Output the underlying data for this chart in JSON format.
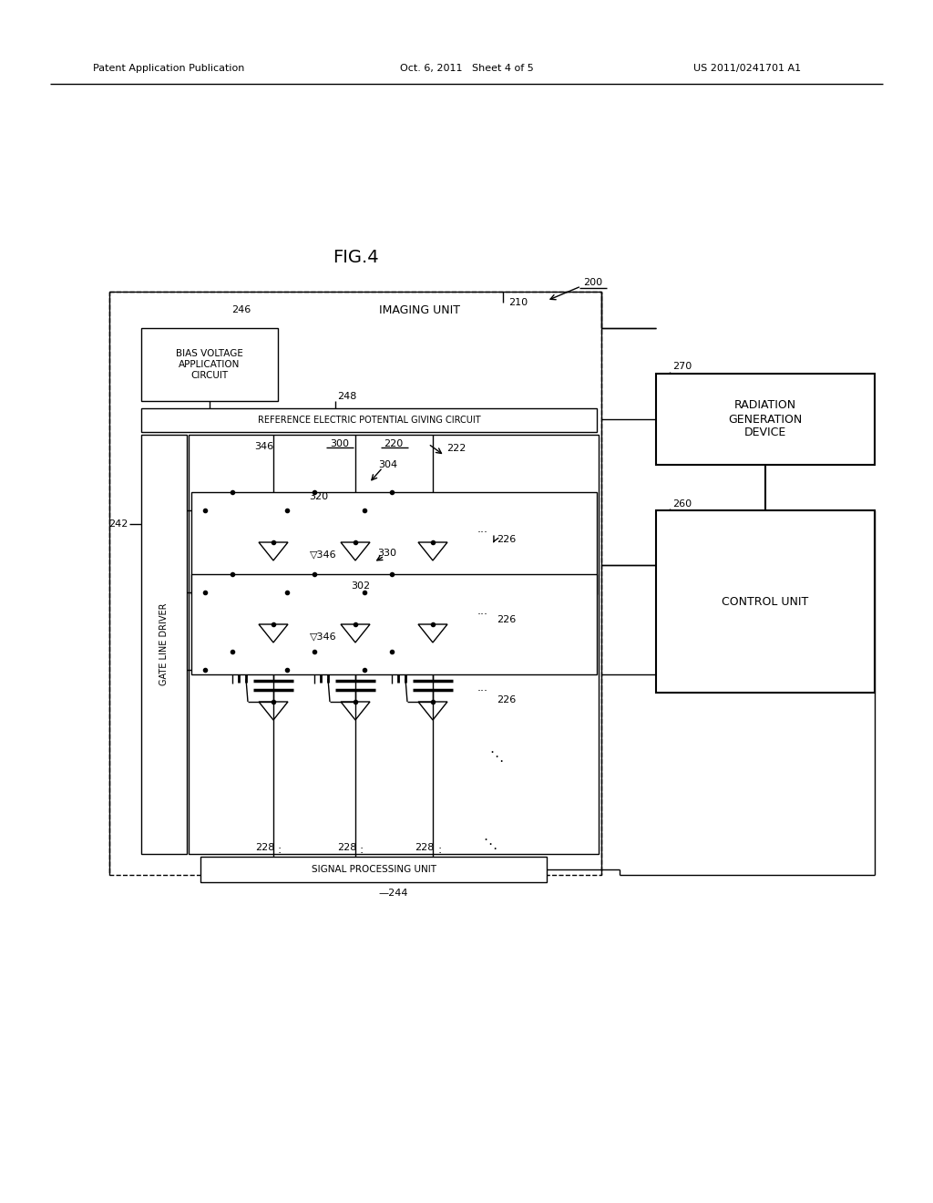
{
  "bg_color": "#ffffff",
  "header_left": "Patent Application Publication",
  "header_center": "Oct. 6, 2011   Sheet 4 of 5",
  "header_right": "US 2011/0241701 A1",
  "fig_label": "FIG.4",
  "labels": {
    "imaging_unit": "IMAGING UNIT",
    "bias_voltage": "BIAS VOLTAGE\nAPPLICATION\nCIRCUIT",
    "reference_circuit": "REFERENCE ELECTRIC POTENTIAL GIVING CIRCUIT",
    "gate_line_driver": "GATE LINE DRIVER",
    "signal_processing": "SIGNAL PROCESSING UNIT",
    "radiation_gen": "RADIATION\nGENERATION\nDEVICE",
    "control_unit": "CONTROL UNIT"
  }
}
